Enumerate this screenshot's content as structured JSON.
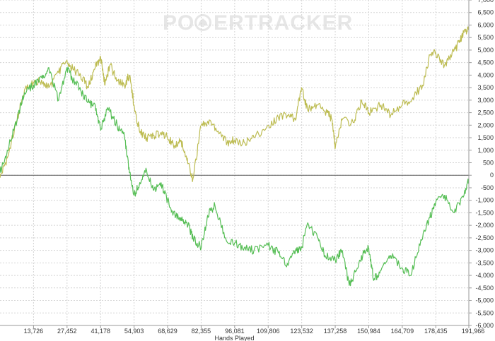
{
  "watermark": {
    "left": "PO",
    "right": "ERTRACKER",
    "icon": "spade-chip-icon"
  },
  "chart_data": {
    "type": "line",
    "xlabel": "Hands Played",
    "ylabel": "",
    "xlim": [
      0,
      191966
    ],
    "ylim": [
      -6000,
      7000
    ],
    "grid": true,
    "x_ticks": [
      13726,
      27452,
      41178,
      54903,
      68629,
      82355,
      96081,
      109806,
      123532,
      137258,
      150984,
      164709,
      178435,
      191966
    ],
    "x_tick_labels": [
      "13,726",
      "27,452",
      "41,178",
      "54,903",
      "68,629",
      "82,355",
      "96,081",
      "109,806",
      "123,532",
      "137,258",
      "150,984",
      "164,709",
      "178,435",
      "191,966"
    ],
    "y_ticks": [
      -6000,
      -5500,
      -5000,
      -4500,
      -4000,
      -3500,
      -3000,
      -2500,
      -2000,
      -1500,
      -1000,
      -500,
      0,
      500,
      1000,
      1500,
      2000,
      2500,
      3000,
      3500,
      4000,
      4500,
      5000,
      5500,
      6000,
      6500,
      7000
    ],
    "y_tick_labels": [
      "-6,000",
      "-5,500",
      "-5,000",
      "-4,500",
      "-4,000",
      "-3,500",
      "-3,000",
      "-2,500",
      "-2,000",
      "-1,500",
      "-1,000",
      "-500",
      "0",
      "500",
      "1,000",
      "1,500",
      "2,000",
      "2,500",
      "3,000",
      "3,500",
      "4,000",
      "4,500",
      "5,000",
      "5,500",
      "6,000",
      "6,500",
      "7,000"
    ],
    "series": [
      {
        "color": "#bdbc52",
        "x": [
          0,
          3000,
          7000,
          10000,
          13700,
          17000,
          20000,
          24000,
          27400,
          30000,
          33000,
          36000,
          39000,
          41200,
          43000,
          45000,
          48000,
          51000,
          53000,
          54900,
          57000,
          60000,
          63000,
          66000,
          68600,
          71000,
          74000,
          76500,
          79000,
          82400,
          86000,
          90000,
          93000,
          96100,
          100000,
          104000,
          109800,
          114000,
          118000,
          121000,
          123500,
          126000,
          130000,
          134000,
          136000,
          137300,
          140000,
          145000,
          148000,
          151000,
          156000,
          160000,
          164700,
          169000,
          173000,
          176000,
          178400,
          182000,
          185000,
          188000,
          190000,
          191966
        ],
        "y": [
          -100,
          700,
          2200,
          3400,
          3700,
          3800,
          3500,
          4100,
          4600,
          4200,
          4000,
          3500,
          4300,
          4700,
          3600,
          4400,
          3800,
          3600,
          4000,
          2800,
          1800,
          1500,
          1600,
          1700,
          1500,
          1200,
          1400,
          600,
          -150,
          2000,
          2200,
          1700,
          1300,
          1400,
          1300,
          1500,
          2000,
          2300,
          2400,
          2200,
          3500,
          2600,
          2800,
          2500,
          2200,
          1100,
          2200,
          2100,
          3000,
          2500,
          2800,
          2400,
          2800,
          3100,
          3600,
          4800,
          4900,
          4400,
          4800,
          5300,
          5700,
          5800
        ]
      },
      {
        "color": "#56be55",
        "x": [
          0,
          3000,
          7000,
          10000,
          13700,
          17000,
          20000,
          24000,
          27400,
          30000,
          33000,
          36000,
          39000,
          41200,
          44000,
          48000,
          51000,
          53000,
          54900,
          57000,
          60000,
          63000,
          66000,
          68600,
          71000,
          74000,
          77000,
          79000,
          82400,
          85000,
          88000,
          92000,
          96100,
          100000,
          104000,
          109800,
          114000,
          118000,
          121000,
          123500,
          126000,
          130000,
          133000,
          137300,
          140000,
          143000,
          146000,
          149000,
          150984,
          153000,
          156000,
          160000,
          164700,
          168000,
          172000,
          176000,
          178400,
          182000,
          186000,
          190000,
          191966
        ],
        "y": [
          100,
          1000,
          2200,
          3300,
          3600,
          3900,
          4300,
          3000,
          4300,
          3800,
          3400,
          2900,
          2800,
          1800,
          2700,
          2000,
          1500,
          100,
          -800,
          -400,
          200,
          -600,
          -300,
          -1000,
          -1500,
          -1700,
          -2000,
          -2500,
          -2900,
          -1600,
          -1200,
          -2500,
          -2700,
          -2900,
          -3000,
          -2800,
          -3100,
          -3600,
          -3000,
          -2900,
          -1900,
          -2500,
          -3200,
          -3400,
          -3000,
          -4400,
          -3800,
          -3100,
          -2900,
          -4200,
          -3800,
          -3200,
          -3700,
          -4000,
          -2800,
          -1700,
          -1100,
          -800,
          -1500,
          -800,
          -200
        ]
      }
    ]
  }
}
